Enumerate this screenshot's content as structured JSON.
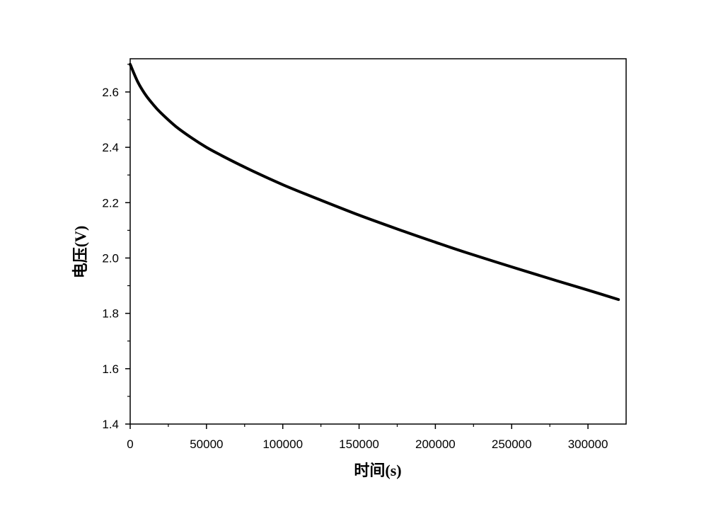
{
  "chart_data": {
    "type": "line",
    "title": "",
    "xlabel": "时间(s)",
    "ylabel": "电压(V)",
    "xlim": [
      0,
      325000
    ],
    "ylim": [
      1.4,
      2.72
    ],
    "x_ticks": [
      "0",
      "50000",
      "100000",
      "150000",
      "200000",
      "250000",
      "300000"
    ],
    "y_ticks": [
      "1.4",
      "1.6",
      "1.8",
      "2.0",
      "2.2",
      "2.4",
      "2.6"
    ],
    "grid": false,
    "legend": "none",
    "series": [
      {
        "color": "#000000",
        "x": [
          0,
          5000,
          10000,
          15000,
          20000,
          30000,
          40000,
          50000,
          60000,
          70000,
          80000,
          100000,
          120000,
          150000,
          180000,
          200000,
          220000,
          250000,
          280000,
          300000,
          320000
        ],
        "y": [
          2.7,
          2.636,
          2.59,
          2.555,
          2.525,
          2.475,
          2.435,
          2.4,
          2.37,
          2.342,
          2.315,
          2.265,
          2.22,
          2.155,
          2.095,
          2.057,
          2.02,
          1.968,
          1.917,
          1.884,
          1.85
        ]
      }
    ]
  }
}
